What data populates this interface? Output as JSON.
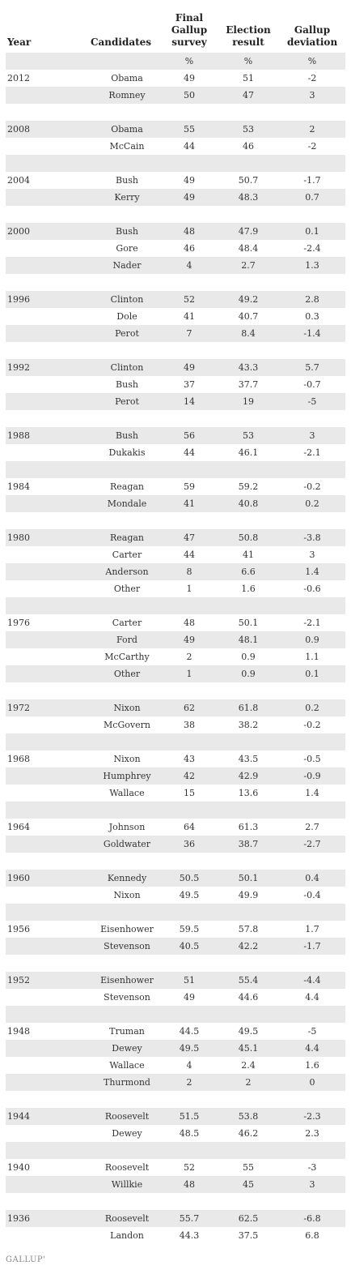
{
  "headers": {
    "year": "Year",
    "candidates": "Candidates",
    "survey": "Final Gallup survey",
    "result": "Election result",
    "deviation": "Gallup deviation"
  },
  "units": [
    "%",
    "%",
    "%"
  ],
  "rows": [
    [
      "2012",
      "Obama",
      "49",
      "51",
      "-2"
    ],
    [
      "",
      "Romney",
      "50",
      "47",
      "3"
    ],
    [
      "",
      "",
      "",
      "",
      ""
    ],
    [
      "2008",
      "Obama",
      "55",
      "53",
      "2"
    ],
    [
      "",
      "McCain",
      "44",
      "46",
      "-2"
    ],
    [
      "",
      "",
      "",
      "",
      ""
    ],
    [
      "2004",
      "Bush",
      "49",
      "50.7",
      "-1.7"
    ],
    [
      "",
      "Kerry",
      "49",
      "48.3",
      "0.7"
    ],
    [
      "",
      "",
      "",
      "",
      ""
    ],
    [
      "2000",
      "Bush",
      "48",
      "47.9",
      "0.1"
    ],
    [
      "",
      "Gore",
      "46",
      "48.4",
      "-2.4"
    ],
    [
      "",
      "Nader",
      "4",
      "2.7",
      "1.3"
    ],
    [
      "",
      "",
      "",
      "",
      ""
    ],
    [
      "1996",
      "Clinton",
      "52",
      "49.2",
      "2.8"
    ],
    [
      "",
      "Dole",
      "41",
      "40.7",
      "0.3"
    ],
    [
      "",
      "Perot",
      "7",
      "8.4",
      "-1.4"
    ],
    [
      "",
      "",
      "",
      "",
      ""
    ],
    [
      "1992",
      "Clinton",
      "49",
      "43.3",
      "5.7"
    ],
    [
      "",
      "Bush",
      "37",
      "37.7",
      "-0.7"
    ],
    [
      "",
      "Perot",
      "14",
      "19",
      "-5"
    ],
    [
      "",
      "",
      "",
      "",
      ""
    ],
    [
      "1988",
      "Bush",
      "56",
      "53",
      "3"
    ],
    [
      "",
      "Dukakis",
      "44",
      "46.1",
      "-2.1"
    ],
    [
      "",
      "",
      "",
      "",
      ""
    ],
    [
      "1984",
      "Reagan",
      "59",
      "59.2",
      "-0.2"
    ],
    [
      "",
      "Mondale",
      "41",
      "40.8",
      "0.2"
    ],
    [
      "",
      "",
      "",
      "",
      ""
    ],
    [
      "1980",
      "Reagan",
      "47",
      "50.8",
      "-3.8"
    ],
    [
      "",
      "Carter",
      "44",
      "41",
      "3"
    ],
    [
      "",
      "Anderson",
      "8",
      "6.6",
      "1.4"
    ],
    [
      "",
      "Other",
      "1",
      "1.6",
      "-0.6"
    ],
    [
      "",
      "",
      "",
      "",
      ""
    ],
    [
      "1976",
      "Carter",
      "48",
      "50.1",
      "-2.1"
    ],
    [
      "",
      "Ford",
      "49",
      "48.1",
      "0.9"
    ],
    [
      "",
      "McCarthy",
      "2",
      "0.9",
      "1.1"
    ],
    [
      "",
      "Other",
      "1",
      "0.9",
      "0.1"
    ],
    [
      "",
      "",
      "",
      "",
      ""
    ],
    [
      "1972",
      "Nixon",
      "62",
      "61.8",
      "0.2"
    ],
    [
      "",
      "McGovern",
      "38",
      "38.2",
      "-0.2"
    ],
    [
      "",
      "",
      "",
      "",
      ""
    ],
    [
      "1968",
      "Nixon",
      "43",
      "43.5",
      "-0.5"
    ],
    [
      "",
      "Humphrey",
      "42",
      "42.9",
      "-0.9"
    ],
    [
      "",
      "Wallace",
      "15",
      "13.6",
      "1.4"
    ],
    [
      "",
      "",
      "",
      "",
      ""
    ],
    [
      "1964",
      "Johnson",
      "64",
      "61.3",
      "2.7"
    ],
    [
      "",
      "Goldwater",
      "36",
      "38.7",
      "-2.7"
    ],
    [
      "",
      "",
      "",
      "",
      ""
    ],
    [
      "1960",
      "Kennedy",
      "50.5",
      "50.1",
      "0.4"
    ],
    [
      "",
      "Nixon",
      "49.5",
      "49.9",
      "-0.4"
    ],
    [
      "",
      "",
      "",
      "",
      ""
    ],
    [
      "1956",
      "Eisenhower",
      "59.5",
      "57.8",
      "1.7"
    ],
    [
      "",
      "Stevenson",
      "40.5",
      "42.2",
      "-1.7"
    ],
    [
      "",
      "",
      "",
      "",
      ""
    ],
    [
      "1952",
      "Eisenhower",
      "51",
      "55.4",
      "-4.4"
    ],
    [
      "",
      "Stevenson",
      "49",
      "44.6",
      "4.4"
    ],
    [
      "",
      "",
      "",
      "",
      ""
    ],
    [
      "1948",
      "Truman",
      "44.5",
      "49.5",
      "-5"
    ],
    [
      "",
      "Dewey",
      "49.5",
      "45.1",
      "4.4"
    ],
    [
      "",
      "Wallace",
      "4",
      "2.4",
      "1.6"
    ],
    [
      "",
      "Thurmond",
      "2",
      "2",
      "0"
    ],
    [
      "",
      "",
      "",
      "",
      ""
    ],
    [
      "1944",
      "Roosevelt",
      "51.5",
      "53.8",
      "-2.3"
    ],
    [
      "",
      "Dewey",
      "48.5",
      "46.2",
      "2.3"
    ],
    [
      "",
      "",
      "",
      "",
      ""
    ],
    [
      "1940",
      "Roosevelt",
      "52",
      "55",
      "-3"
    ],
    [
      "",
      "Willkie",
      "48",
      "45",
      "3"
    ],
    [
      "",
      "",
      "",
      "",
      ""
    ],
    [
      "1936",
      "Roosevelt",
      "55.7",
      "62.5",
      "-6.8"
    ],
    [
      "",
      "Landon",
      "44.3",
      "37.5",
      "6.8"
    ]
  ],
  "chart_data": {
    "type": "table",
    "columns": [
      "Year",
      "Candidates",
      "Final Gallup survey",
      "Election result",
      "Gallup deviation"
    ],
    "units": [
      "",
      "",
      "%",
      "%",
      "%"
    ]
  },
  "footer": {
    "logo": "GALLUP'"
  }
}
